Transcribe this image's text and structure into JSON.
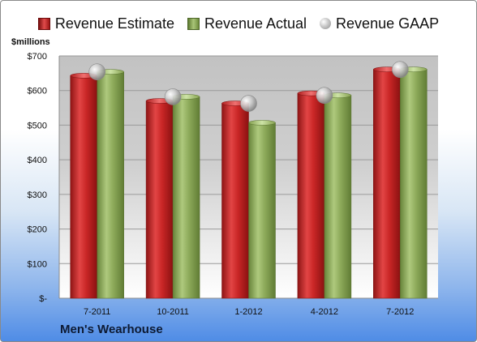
{
  "chart_data": {
    "type": "bar",
    "categories": [
      "7-2011",
      "10-2011",
      "1-2012",
      "4-2012",
      "7-2012"
    ],
    "series": [
      {
        "name": "Revenue Estimate",
        "kind": "bar",
        "color": "#c0262a",
        "values": [
          643,
          570,
          563,
          592,
          661
        ]
      },
      {
        "name": "Revenue Actual",
        "kind": "bar",
        "color": "#8fae5a",
        "values": [
          654,
          582,
          507,
          586,
          661
        ]
      },
      {
        "name": "Revenue GAAP",
        "kind": "marker",
        "color": "#b8b8b8",
        "values": [
          654,
          582,
          563,
          586,
          661
        ]
      }
    ],
    "ylabel": "$millions",
    "ylim": [
      0,
      700
    ],
    "yticks": [
      0,
      100,
      200,
      300,
      400,
      500,
      600,
      700
    ],
    "ytick_labels": [
      "$-",
      "$100",
      "$200",
      "$300",
      "$400",
      "$500",
      "$600",
      "$700"
    ],
    "grid": true,
    "legend_position": "top",
    "caption": "Men's Wearhouse"
  }
}
